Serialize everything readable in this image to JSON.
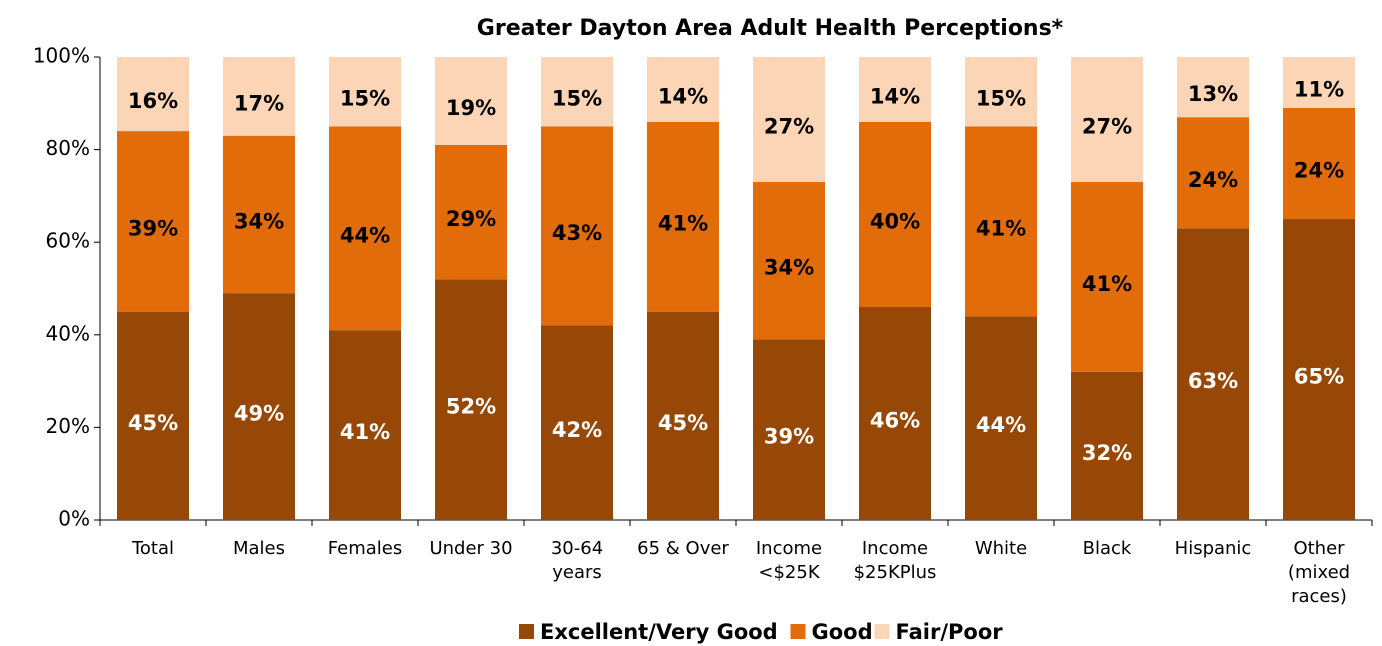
{
  "chart_data": {
    "type": "stacked_bar",
    "title": "Greater Dayton Area Adult Health Perceptions*",
    "categories": [
      "Total",
      "Males",
      "Females",
      "Under 30",
      "30-64 years",
      "65 & Over",
      "Income <$25K",
      "Income $25KPlus",
      "White",
      "Black",
      "Hispanic",
      "Other (mixed races)"
    ],
    "series": [
      {
        "name": "Excellent/Very Good",
        "color": "#974806",
        "label_color": "#ffffff",
        "values": [
          45,
          49,
          41,
          52,
          42,
          45,
          39,
          46,
          44,
          32,
          63,
          65
        ],
        "value_labels": [
          "45%",
          "49%",
          "41%",
          "52%",
          "42%",
          "45%",
          "39%",
          "46%",
          "44%",
          "32%",
          "63%",
          "65%"
        ]
      },
      {
        "name": "Good",
        "color": "#e36c0a",
        "label_color": "#000000",
        "values": [
          39,
          34,
          44,
          29,
          43,
          41,
          34,
          40,
          41,
          41,
          24,
          24
        ],
        "value_labels": [
          "39%",
          "34%",
          "44%",
          "29%",
          "43%",
          "41%",
          "34%",
          "40%",
          "41%",
          "41%",
          "24%",
          "24%"
        ]
      },
      {
        "name": "Fair/Poor",
        "color": "#fbd5b5",
        "label_color": "#000000",
        "values": [
          16,
          17,
          15,
          19,
          15,
          14,
          27,
          14,
          15,
          27,
          13,
          11
        ],
        "value_labels": [
          "16%",
          "17%",
          "15%",
          "19%",
          "15%",
          "14%",
          "27%",
          "14%",
          "15%",
          "27%",
          "13%",
          "11%"
        ]
      }
    ],
    "ylim": [
      0,
      100
    ],
    "yticks": [
      {
        "value": 0,
        "label": "0%"
      },
      {
        "value": 20,
        "label": "20%"
      },
      {
        "value": 40,
        "label": "40%"
      },
      {
        "value": 60,
        "label": "60%"
      },
      {
        "value": 80,
        "label": "80%"
      },
      {
        "value": 100,
        "label": "100%"
      }
    ],
    "grid": false,
    "legend": "bottom"
  }
}
